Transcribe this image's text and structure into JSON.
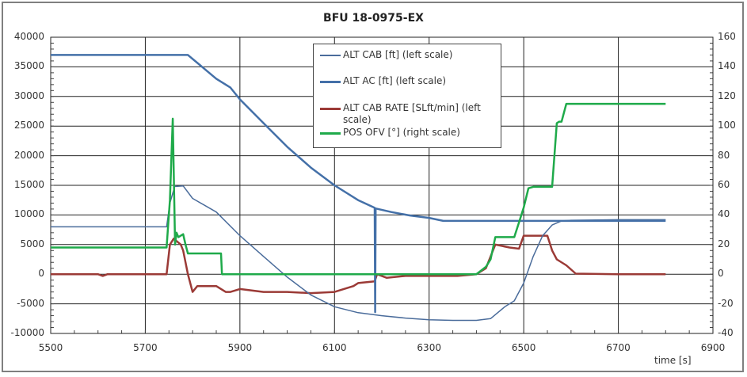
{
  "chart_data": {
    "type": "line",
    "title": "BFU 18-0975-EX",
    "xlabel": "time [s]",
    "ylabel_left": "",
    "ylabel_right": "",
    "xlim": [
      5500,
      6900
    ],
    "ylim_left": [
      -10000,
      40000
    ],
    "ylim_right": [
      -40,
      160
    ],
    "grid": true,
    "legend_position": "upper center (inside plot)",
    "x_ticks": [
      "5500",
      "5700",
      "5900",
      "6100",
      "6300",
      "6500",
      "6700",
      "6900"
    ],
    "y_ticks_left": [
      "40000",
      "35000",
      "30000",
      "25000",
      "20000",
      "15000",
      "10000",
      "5000",
      "0",
      "-5000",
      "-10000"
    ],
    "y_ticks_right": [
      "160",
      "140",
      "120",
      "100",
      "80",
      "60",
      "40",
      "20",
      "0",
      "-20",
      "-40"
    ],
    "series": [
      {
        "name": "ALT CAB [ft] (left scale)",
        "axis": "left",
        "color": "#4a6c9b",
        "x": [
          5500,
          5745,
          5752,
          5762,
          5780,
          5800,
          5850,
          5900,
          5950,
          6000,
          6050,
          6100,
          6150,
          6200,
          6250,
          6300,
          6350,
          6400,
          6430,
          6460,
          6480,
          6500,
          6520,
          6540,
          6560,
          6580,
          6600,
          6700,
          6800
        ],
        "values": [
          8000,
          8000,
          12000,
          14800,
          14900,
          12800,
          10500,
          6500,
          3000,
          -500,
          -3500,
          -5500,
          -6500,
          -7000,
          -7400,
          -7700,
          -7800,
          -7800,
          -7500,
          -5500,
          -4500,
          -1500,
          3000,
          6500,
          8300,
          9000,
          9100,
          9200,
          9200
        ]
      },
      {
        "name": "ALT AC [ft] (left scale)",
        "axis": "left",
        "color": "#4470a8",
        "x": [
          5500,
          5750,
          5790,
          5820,
          5850,
          5880,
          5900,
          5950,
          6000,
          6050,
          6100,
          6150,
          6185,
          6186,
          6187,
          6220,
          6260,
          6300,
          6330,
          6400,
          6500,
          6600,
          6700,
          6800
        ],
        "values": [
          37000,
          37000,
          37000,
          35000,
          33000,
          31500,
          29500,
          25500,
          21500,
          18000,
          15000,
          12500,
          11200,
          -6400,
          11100,
          10500,
          9900,
          9500,
          9000,
          9000,
          9000,
          9000,
          9000,
          9000
        ]
      },
      {
        "name": "ALT CAB RATE [SLft/min] (left scale)",
        "axis": "left",
        "color": "#9b3a36",
        "x": [
          5500,
          5600,
          5610,
          5620,
          5745,
          5752,
          5760,
          5775,
          5780,
          5790,
          5800,
          5810,
          5850,
          5870,
          5880,
          5900,
          5950,
          6000,
          6050,
          6100,
          6140,
          6150,
          6160,
          6185,
          6190,
          6210,
          6250,
          6300,
          6330,
          6360,
          6400,
          6420,
          6440,
          6470,
          6490,
          6500,
          6510,
          6550,
          6560,
          6570,
          6590,
          6610,
          6700,
          6800
        ],
        "values": [
          0,
          0,
          -300,
          0,
          0,
          5000,
          6000,
          5000,
          4000,
          0,
          -3000,
          -2000,
          -2000,
          -3000,
          -3000,
          -2500,
          -3000,
          -3000,
          -3200,
          -3000,
          -2000,
          -1500,
          -1400,
          -1200,
          0,
          -600,
          -300,
          -300,
          -300,
          -300,
          0,
          1000,
          5000,
          4500,
          4300,
          6500,
          6500,
          6500,
          4000,
          2500,
          1500,
          100,
          0,
          0
        ]
      },
      {
        "name": "POS OFV [°] (right scale)",
        "axis": "right",
        "color": "#1faa4a",
        "x": [
          5500,
          5745,
          5752,
          5758,
          5763,
          5766,
          5770,
          5780,
          5785,
          5790,
          5860,
          5862,
          6400,
          6420,
          6430,
          6440,
          6480,
          6490,
          6500,
          6510,
          6520,
          6560,
          6570,
          6575,
          6580,
          6590,
          6600,
          6800
        ],
        "values": [
          18,
          18,
          50,
          105,
          20,
          28,
          25,
          27,
          20,
          14,
          14,
          0,
          0,
          5,
          10,
          25,
          25,
          35,
          45,
          58,
          59,
          59,
          102,
          103,
          103,
          115,
          115,
          115
        ]
      }
    ]
  },
  "legend": {
    "items": [
      {
        "label": "ALT CAB [ft] (left scale)",
        "color": "#4a6c9b"
      },
      {
        "label": "ALT AC [ft] (left scale)",
        "color": "#4470a8"
      },
      {
        "label": "ALT CAB RATE [SLft/min] (left scale)",
        "color": "#9b3a36"
      },
      {
        "label": "POS OFV [°] (right scale)",
        "color": "#1faa4a"
      }
    ]
  }
}
